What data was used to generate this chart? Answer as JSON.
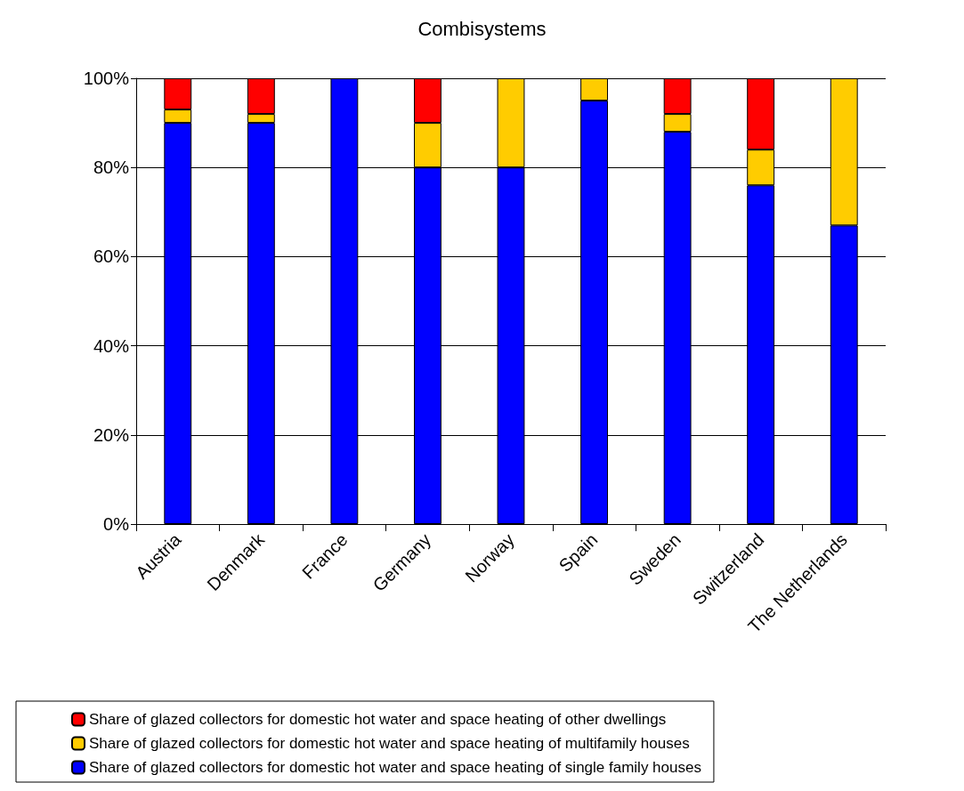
{
  "chart_data": {
    "type": "bar",
    "title": "Combisystems",
    "stacked": true,
    "categories": [
      "Austria",
      "Denmark",
      "France",
      "Germany",
      "Norway",
      "Spain",
      "Sweden",
      "Switzerland",
      "The Netherlands"
    ],
    "series": [
      {
        "name": "Share of glazed collectors for domestic hot water and space heating of single family houses",
        "color": "#0000ff",
        "values": [
          90,
          90,
          100,
          80,
          80,
          95,
          88,
          76,
          67
        ]
      },
      {
        "name": "Share of glazed collectors for domestic hot water and space heating of multifamily houses",
        "color": "#ffcc00",
        "values": [
          3,
          2,
          null,
          10,
          20,
          5,
          4,
          8,
          33
        ]
      },
      {
        "name": "Share of glazed collectors for domestic hot water and space heating of other dwellings",
        "color": "#ff0000",
        "values": [
          7,
          8,
          null,
          10,
          null,
          null,
          8,
          16,
          null
        ]
      }
    ],
    "ylim": [
      0,
      100
    ],
    "yticks": [
      {
        "value": 0,
        "label": "0%"
      },
      {
        "value": 20,
        "label": "20%"
      },
      {
        "value": 40,
        "label": "40%"
      },
      {
        "value": 60,
        "label": "60%"
      },
      {
        "value": 80,
        "label": "80%"
      },
      {
        "value": 100,
        "label": "100%"
      }
    ],
    "grid": "y",
    "legend": "bottom"
  }
}
